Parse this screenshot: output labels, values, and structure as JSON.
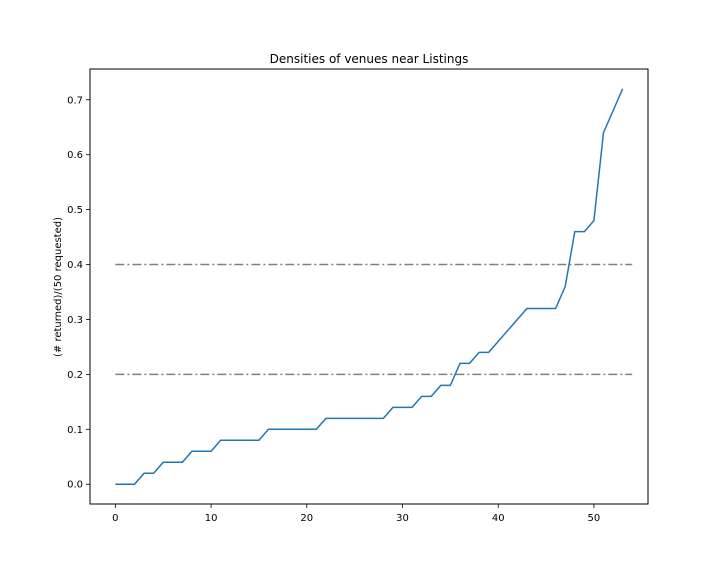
{
  "chart_data": {
    "type": "line",
    "title": "Densities of venues near Listings",
    "xlabel": "",
    "ylabel": "(# returned)/(50 requested)",
    "xlim": [
      -2.65,
      55.65
    ],
    "ylim": [
      -0.036,
      0.756
    ],
    "xticks": [
      0,
      10,
      20,
      30,
      40,
      50
    ],
    "yticks": [
      0.0,
      0.1,
      0.2,
      0.3,
      0.4,
      0.5,
      0.6,
      0.7
    ],
    "xtick_labels": [
      "0",
      "10",
      "20",
      "30",
      "40",
      "50"
    ],
    "ytick_labels": [
      "0.0",
      "0.1",
      "0.2",
      "0.3",
      "0.4",
      "0.5",
      "0.6",
      "0.7"
    ],
    "grid": false,
    "series": [
      {
        "color": "#1f77b4",
        "style": "solid",
        "x": [
          0,
          1,
          2,
          3,
          4,
          5,
          6,
          7,
          8,
          9,
          10,
          11,
          12,
          13,
          14,
          15,
          16,
          17,
          18,
          19,
          20,
          21,
          22,
          23,
          24,
          25,
          26,
          27,
          28,
          29,
          30,
          31,
          32,
          33,
          34,
          35,
          36,
          37,
          38,
          39,
          40,
          41,
          42,
          43,
          44,
          45,
          46,
          47,
          48,
          49,
          50,
          51,
          52,
          53
        ],
        "y": [
          0,
          0,
          0,
          0.02,
          0.02,
          0.04,
          0.04,
          0.04,
          0.06,
          0.06,
          0.06,
          0.08,
          0.08,
          0.08,
          0.08,
          0.08,
          0.1,
          0.1,
          0.1,
          0.1,
          0.1,
          0.1,
          0.12,
          0.12,
          0.12,
          0.12,
          0.12,
          0.12,
          0.12,
          0.14,
          0.14,
          0.14,
          0.16,
          0.16,
          0.18,
          0.18,
          0.22,
          0.22,
          0.24,
          0.24,
          0.26,
          0.28,
          0.3,
          0.32,
          0.32,
          0.32,
          0.32,
          0.36,
          0.46,
          0.46,
          0.48,
          0.64,
          0.68,
          0.72
        ]
      }
    ],
    "reference_lines": [
      {
        "y": 0.4,
        "x_range": [
          0,
          54
        ],
        "color": "#808080",
        "style": "dashdot"
      },
      {
        "y": 0.2,
        "x_range": [
          0,
          54
        ],
        "color": "#808080",
        "style": "dashdot"
      }
    ]
  }
}
